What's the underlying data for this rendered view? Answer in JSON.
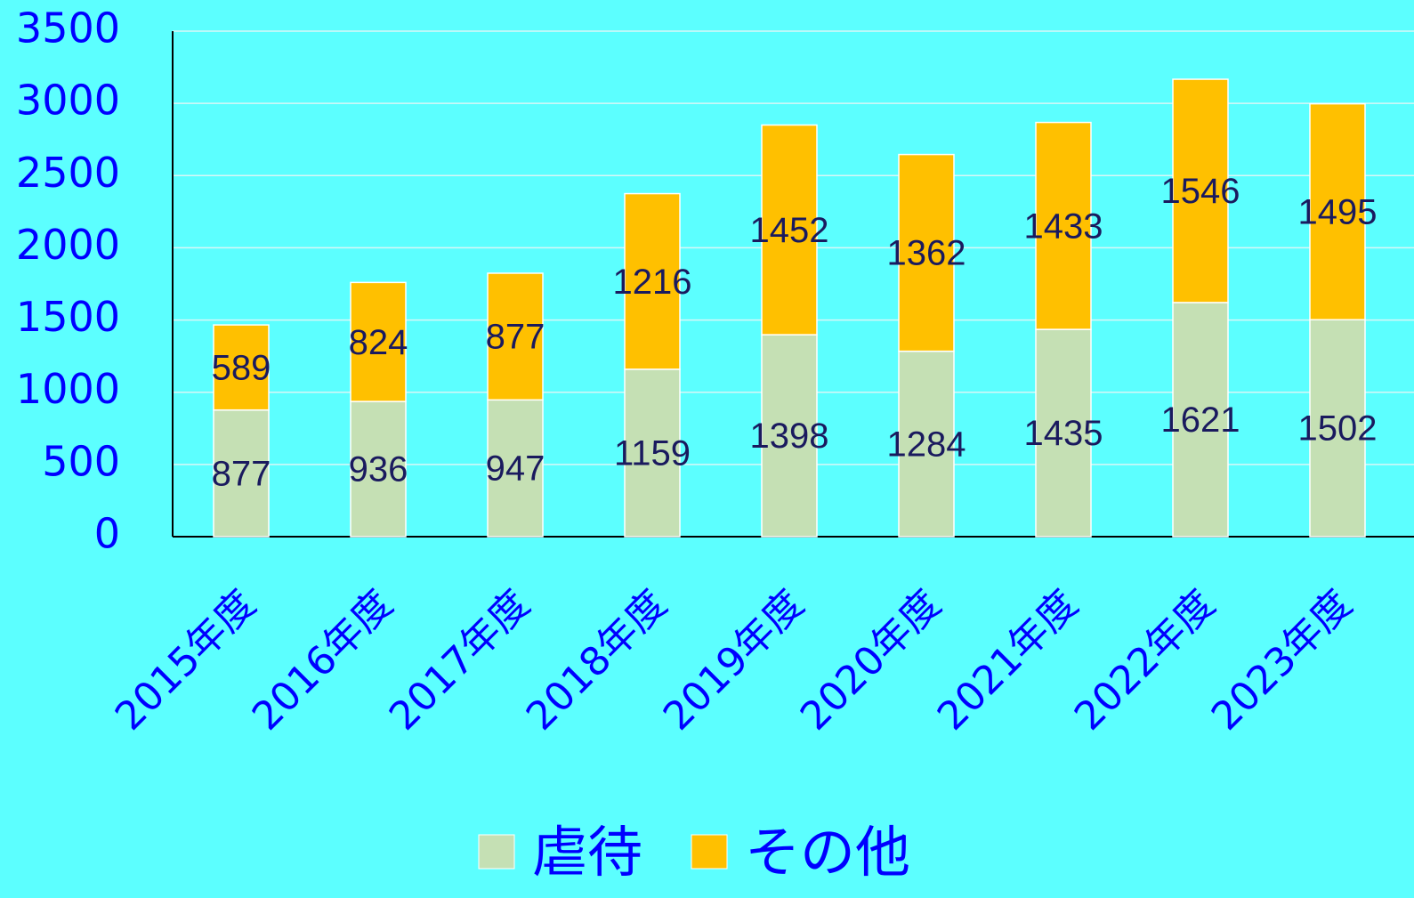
{
  "chart_data": {
    "type": "bar",
    "stacked": true,
    "categories": [
      "2015年度",
      "2016年度",
      "2017年度",
      "2018年度",
      "2019年度",
      "2020年度",
      "2021年度",
      "2022年度",
      "2023年度"
    ],
    "series": [
      {
        "name": "虐待",
        "color": "#c5e0b4",
        "values": [
          877,
          936,
          947,
          1159,
          1398,
          1284,
          1435,
          1621,
          1502
        ]
      },
      {
        "name": "その他",
        "color": "#ffc000",
        "values": [
          589,
          824,
          877,
          1216,
          1452,
          1362,
          1433,
          1546,
          1495
        ]
      }
    ],
    "ylim": [
      0,
      3500
    ],
    "yticks": [
      0,
      500,
      1000,
      1500,
      2000,
      2500,
      3000,
      3500
    ],
    "grid": true,
    "legend": "bottom"
  }
}
